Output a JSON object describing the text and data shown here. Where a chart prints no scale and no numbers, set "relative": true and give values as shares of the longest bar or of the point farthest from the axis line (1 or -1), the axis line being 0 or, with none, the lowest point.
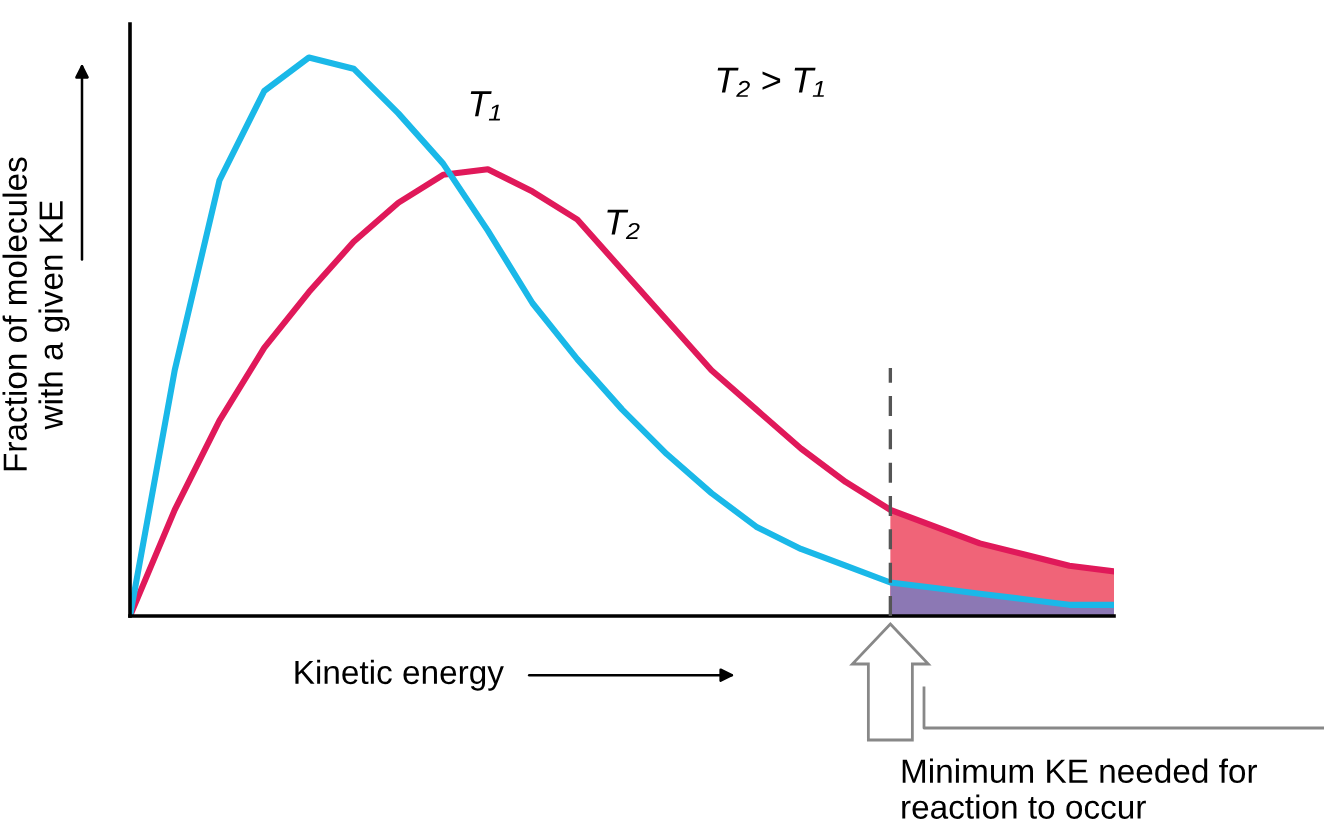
{
  "chart_data": {
    "type": "line",
    "relative": true,
    "xlabel": "Kinetic energy",
    "ylabel": "Fraction of molecules\nwith a given KE",
    "categories": [
      null,
      null,
      null,
      null,
      null,
      null,
      null,
      null,
      null,
      null,
      null,
      null,
      null,
      null,
      null,
      null,
      null,
      null,
      null,
      null,
      null,
      null,
      null
    ],
    "series": [
      {
        "type": "area",
        "color": "#f06478",
        "values": [
          null,
          null,
          null,
          null,
          null,
          null,
          null,
          null,
          null,
          null,
          null,
          null,
          null,
          null,
          null,
          null,
          null,
          0.19,
          0.16,
          0.13,
          0.11,
          0.09,
          0.08
        ]
      },
      {
        "type": "area",
        "color": "#8c78b4",
        "values": [
          null,
          null,
          null,
          null,
          null,
          null,
          null,
          null,
          null,
          null,
          null,
          null,
          null,
          null,
          null,
          null,
          null,
          0.06,
          0.05,
          0.04,
          0.03,
          0.02,
          0.02
        ]
      },
      {
        "color": "#e0195a",
        "values": [
          0,
          0.19,
          0.35,
          0.48,
          0.58,
          0.67,
          0.74,
          0.79,
          0.8,
          0.76,
          0.71,
          0.62,
          0.53,
          0.44,
          0.37,
          0.3,
          0.24,
          0.19,
          0.16,
          0.13,
          0.11,
          0.09,
          0.08
        ]
      },
      {
        "color": "#1ab8e8",
        "values": [
          0,
          0.44,
          0.78,
          0.94,
          1,
          0.98,
          0.9,
          0.81,
          0.69,
          0.56,
          0.46,
          0.37,
          0.29,
          0.22,
          0.16,
          0.12,
          0.09,
          0.06,
          0.05,
          0.04,
          0.03,
          0.02,
          0.02
        ]
      }
    ],
    "annotations": [
      "T₁",
      "T₂",
      "T₂ > T₁",
      "Minimum KE needed for\nreaction to occur"
    ]
  }
}
